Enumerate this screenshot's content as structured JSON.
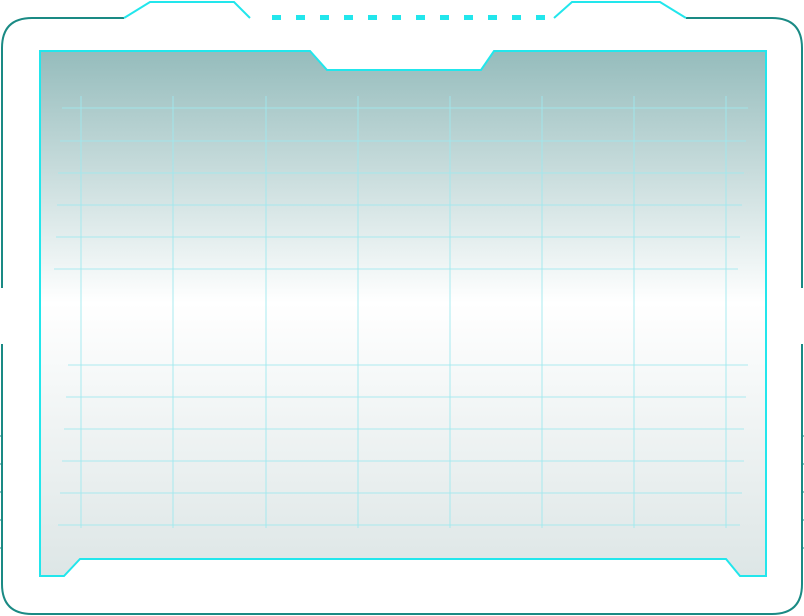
{
  "frame": {
    "colors": {
      "outer_border": "#1a8a84",
      "accent": "#22e6ec",
      "grid_line": "#9fe9ef",
      "panel_top": "#95bcbc",
      "panel_mid": "#ffffff",
      "panel_bottom": "#dde6e6",
      "background": "#ffffff"
    }
  }
}
